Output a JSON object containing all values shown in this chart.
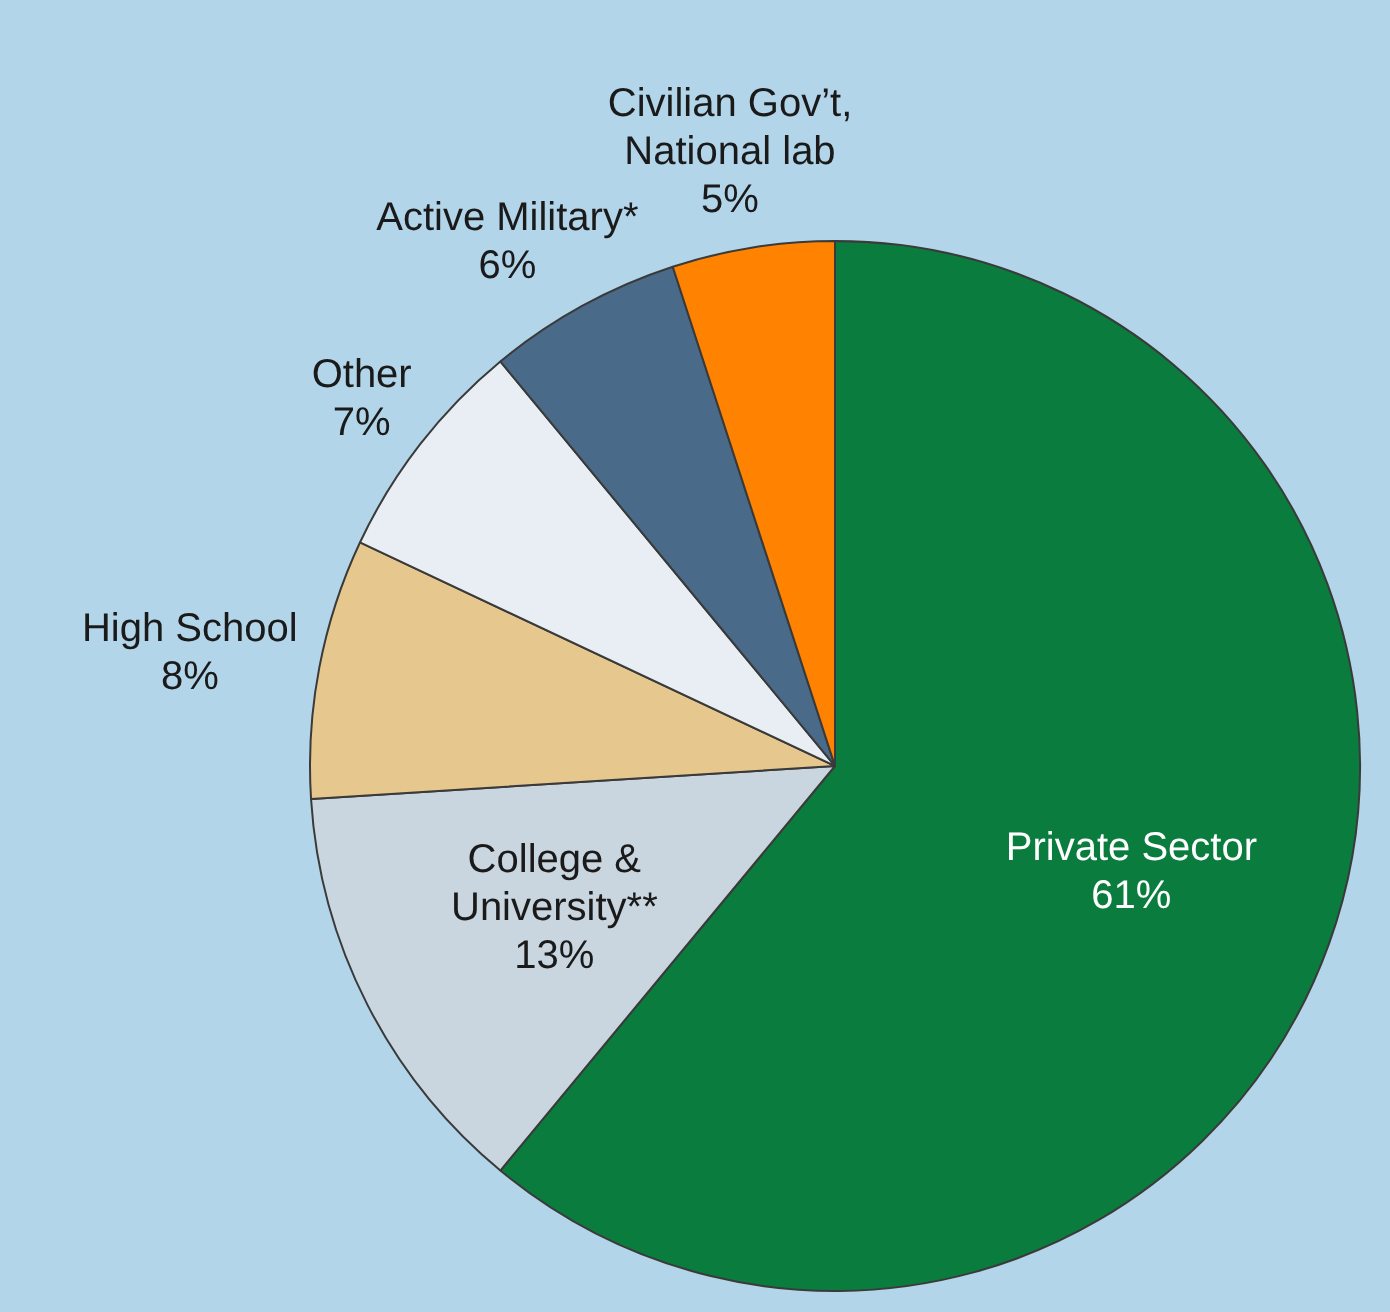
{
  "chart_data": {
    "type": "pie",
    "categories": [
      "Private Sector",
      "College & University**",
      "High School",
      "Other",
      "Active Military*",
      "Civilian Gov’t, National lab"
    ],
    "values": [
      61,
      13,
      8,
      7,
      6,
      5
    ],
    "colors": [
      "#0a7d3e",
      "#c9d5df",
      "#e6c88f",
      "#e8eef3",
      "#4a6a89",
      "#ff8200"
    ],
    "value_labels": [
      "61%",
      "13%",
      "8%",
      "7%",
      "6%",
      "5%"
    ],
    "legend": false
  }
}
